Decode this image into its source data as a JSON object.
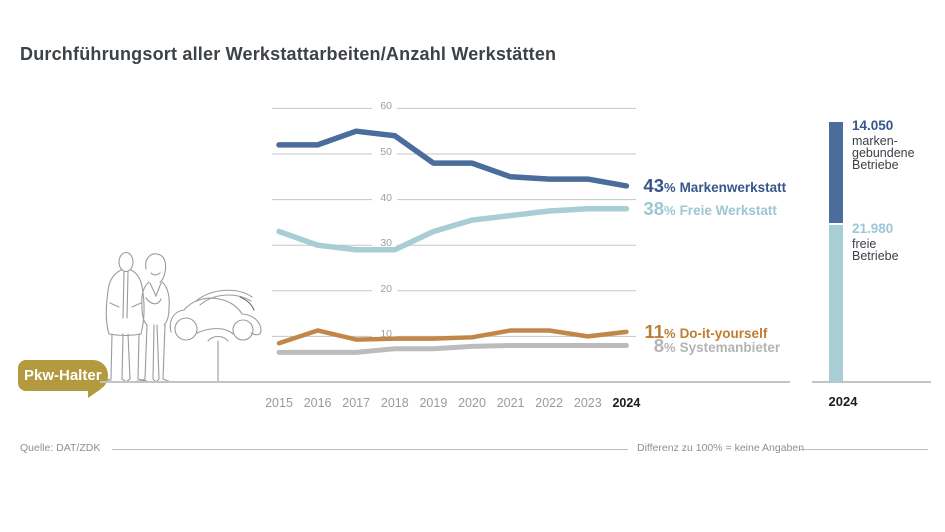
{
  "page": {
    "title": "Durchführungsort aller Werkstattarbeiten/Anzahl Werkstätten"
  },
  "badge": {
    "label": "Pkw-Halter",
    "color": "#b49a3e"
  },
  "chart_data": {
    "type": "line",
    "title": "Durchführungsort aller Werkstattarbeiten",
    "xlabel": "",
    "ylabel": "",
    "x": [
      "2015",
      "2016",
      "2017",
      "2018",
      "2019",
      "2020",
      "2021",
      "2022",
      "2023",
      "2024"
    ],
    "ylim": [
      0,
      60
    ],
    "yticks": [
      10,
      20,
      30,
      40,
      50,
      60
    ],
    "grid": true,
    "legend_position": "right-of-line-ends",
    "series": [
      {
        "name": "Markenwerkstatt",
        "color": "#4a6d9b",
        "label_color": "#35578b",
        "values": [
          52,
          52,
          55,
          54,
          48,
          48,
          45,
          44.5,
          44.5,
          43
        ],
        "end_label": {
          "value": "43",
          "unit": "%",
          "name": "Markenwerkstatt"
        }
      },
      {
        "name": "Freie Werkstatt",
        "color": "#a8cdd5",
        "label_color": "#9dc7d3",
        "values": [
          33,
          30,
          29,
          29,
          33,
          35.5,
          36.5,
          37.5,
          38,
          38
        ],
        "end_label": {
          "value": "38",
          "unit": "%",
          "name": "Freie Werkstatt"
        }
      },
      {
        "name": "Do-it-yourself",
        "color": "#c28748",
        "label_color": "#bd7e33",
        "values": [
          8.5,
          11.3,
          9.3,
          9.5,
          9.5,
          9.8,
          11.3,
          11.3,
          10,
          11
        ],
        "end_label": {
          "value": "11",
          "unit": "%",
          "name": "Do-it-yourself"
        }
      },
      {
        "name": "Systemanbieter",
        "color": "#bcbcbc",
        "label_color": "#b4b4b4",
        "values": [
          6.5,
          6.5,
          6.5,
          7.3,
          7.3,
          7.8,
          8,
          8,
          8,
          8
        ],
        "end_label": {
          "value": "8",
          "unit": "%",
          "name": "Systemanbieter"
        }
      }
    ]
  },
  "right_bar": {
    "year_label": "2024",
    "segments": [
      {
        "value": 14050,
        "value_label": "14.050",
        "name_lines": "marken-\ngebundene\nBetriebe",
        "color": "#4a6d9b",
        "value_color": "#35578b"
      },
      {
        "value": 21980,
        "value_label": "21.980",
        "name_lines": "freie\nBetriebe",
        "color": "#a8cdd5",
        "value_color": "#9dc7d3"
      }
    ]
  },
  "footer": {
    "source": "Quelle: DAT/ZDK",
    "note": "Differenz zu 100% = keine Angaben"
  }
}
